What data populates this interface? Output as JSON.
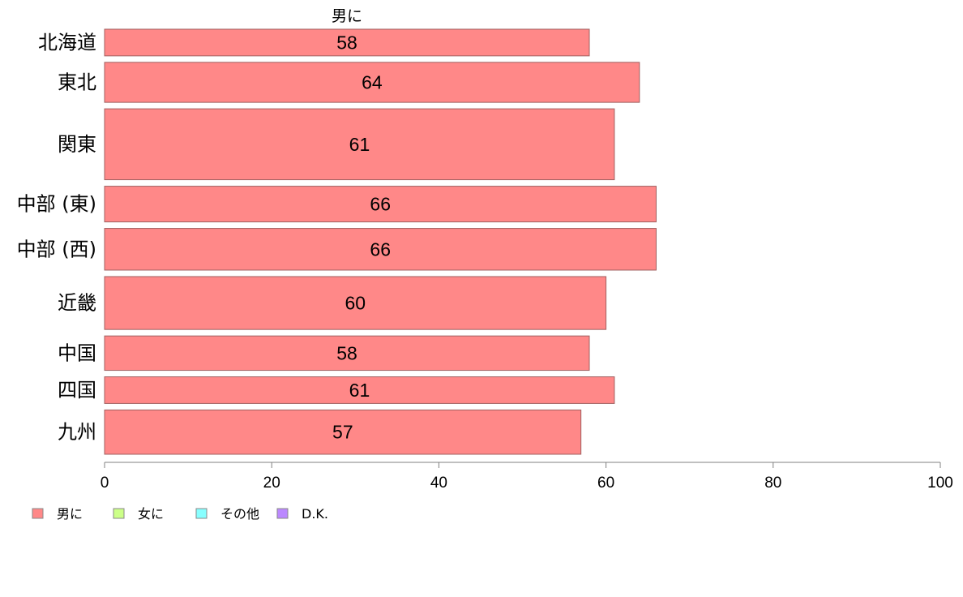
{
  "chart_data": {
    "type": "bar",
    "orientation": "horizontal",
    "series_title": "男に",
    "categories": [
      "北海道",
      "東北",
      "関東",
      "中部 (東)",
      "中部 (西)",
      "近畿",
      "中国",
      "四国",
      "九州"
    ],
    "series": [
      {
        "name": "男に",
        "values": [
          58,
          64,
          61,
          66,
          66,
          60,
          58,
          61,
          57
        ]
      }
    ],
    "value_labels": [
      "58",
      "64",
      "61",
      "66",
      "66",
      "60",
      "58",
      "61",
      "57"
    ],
    "category_weights": [
      0.62,
      0.93,
      1.65,
      0.83,
      0.97,
      1.23,
      0.8,
      0.62,
      1.03
    ],
    "xlim": [
      0,
      100
    ],
    "xticks": [
      0,
      20,
      40,
      60,
      80,
      100
    ],
    "xtick_labels": [
      "0",
      "20",
      "40",
      "60",
      "80",
      "100"
    ],
    "grid": false,
    "legend": {
      "placement": "bottom-left",
      "items": [
        {
          "label": "男に",
          "color": "#ff8888"
        },
        {
          "label": "女に",
          "color": "#ccff88"
        },
        {
          "label": "その他",
          "color": "#88ffff"
        },
        {
          "label": "D.K.",
          "color": "#bb88ff"
        }
      ]
    },
    "colors": {
      "bar_fill": "#ff8888",
      "bar_stroke": "#a06060",
      "axis": "#808080"
    }
  }
}
